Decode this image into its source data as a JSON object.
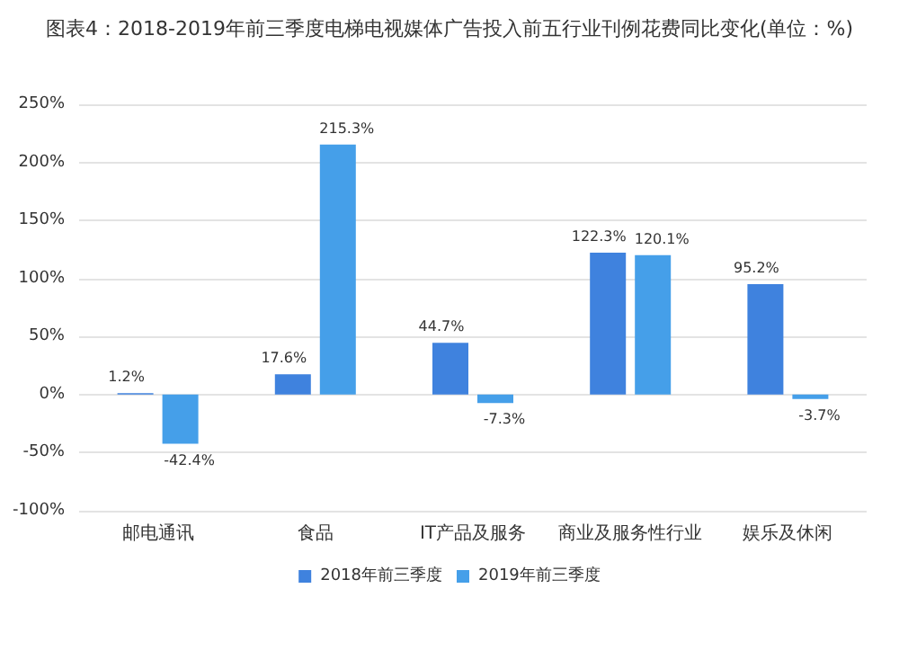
{
  "chart_data": {
    "type": "bar",
    "title": "图表4：2018-2019年前三季度电梯电视媒体广告投入前五行业刊例花费同比变化(单位：%)",
    "categories": [
      "邮电通讯",
      "食品",
      "IT产品及服务",
      "商业及服务性行业",
      "娱乐及休闲"
    ],
    "series": [
      {
        "name": "2018年前三季度",
        "color": "#3f82de",
        "values": [
          1.2,
          17.6,
          44.7,
          122.3,
          95.2
        ]
      },
      {
        "name": "2019年前三季度",
        "color": "#459fe9",
        "values": [
          -42.4,
          215.3,
          -7.3,
          120.1,
          -3.7
        ]
      }
    ],
    "value_labels": [
      [
        "1.2%",
        "17.6%",
        "44.7%",
        "122.3%",
        "95.2%"
      ],
      [
        "-42.4%",
        "215.3%",
        "-7.3%",
        "120.1%",
        "-3.7%"
      ]
    ],
    "ylim": [
      -100,
      250
    ],
    "yticks": [
      {
        "value": -100,
        "label": "-100%"
      },
      {
        "value": -50,
        "label": "-50%"
      },
      {
        "value": 0,
        "label": "0%"
      },
      {
        "value": 50,
        "label": "50%"
      },
      {
        "value": 100,
        "label": "100%"
      },
      {
        "value": 150,
        "label": "150%"
      },
      {
        "value": 200,
        "label": "200%"
      },
      {
        "value": 250,
        "label": "250%"
      }
    ],
    "grid": "y",
    "legend": "bottom"
  }
}
